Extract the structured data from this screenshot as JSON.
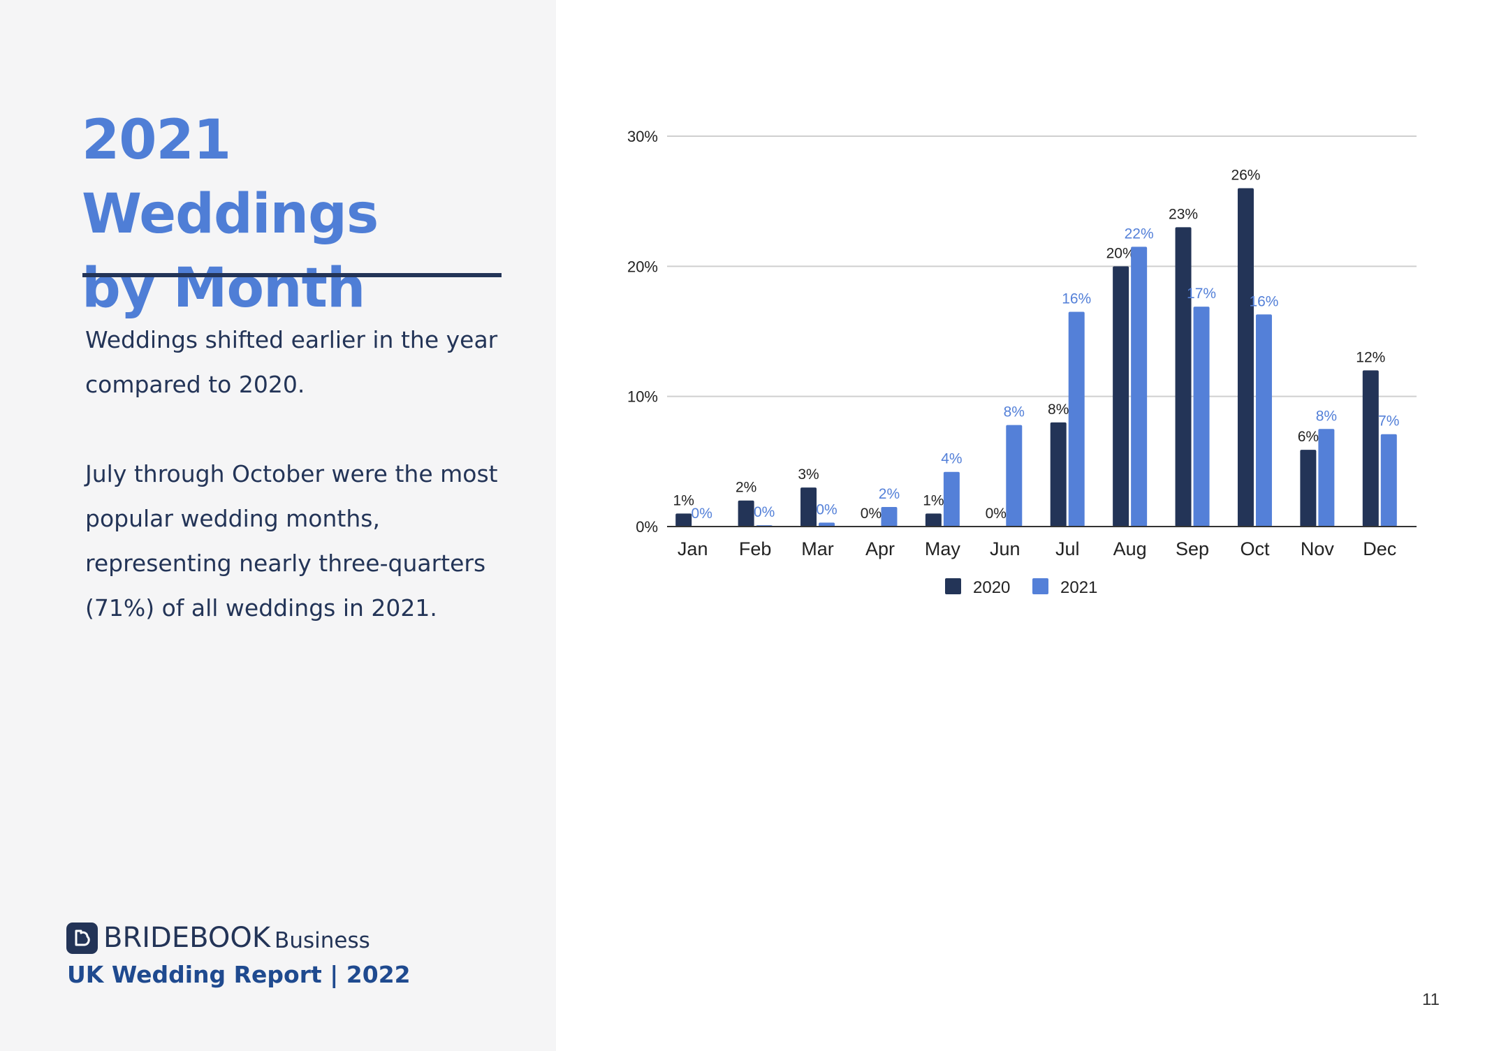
{
  "left": {
    "title_line1": "2021 Weddings",
    "title_line2": "by Month",
    "paragraph1": "Weddings shifted earlier in the year compared to 2020.",
    "paragraph2": "July through October were the most popular wedding months, representing nearly three-quarters (71%) of all weddings in 2021.",
    "logo_brand": "BRIDEBOOK",
    "logo_suffix": "Business",
    "report_title": "UK Wedding Report | 2022"
  },
  "page_number": "11",
  "colors": {
    "series2020": "#233457",
    "series2021": "#5480d8",
    "accent": "#4f7ed6"
  },
  "chart_data": {
    "type": "bar",
    "title": "",
    "xlabel": "",
    "ylabel": "",
    "ylim": [
      0,
      30
    ],
    "yticks": [
      "0%",
      "10%",
      "20%",
      "30%"
    ],
    "ytick_values": [
      0,
      10,
      20,
      30
    ],
    "grid": true,
    "legend_position": "bottom",
    "categories": [
      "Jan",
      "Feb",
      "Mar",
      "Apr",
      "May",
      "Jun",
      "Jul",
      "Aug",
      "Sep",
      "Oct",
      "Nov",
      "Dec"
    ],
    "series": [
      {
        "name": "2020",
        "values": [
          1,
          2,
          3,
          0,
          1,
          0,
          8,
          20,
          23,
          26,
          5.9,
          12
        ],
        "labels": [
          "1%",
          "2%",
          "3%",
          "0%",
          "1%",
          "0%",
          "8%",
          "20%",
          "23%",
          "26%",
          "6%",
          "12%"
        ]
      },
      {
        "name": "2021",
        "values": [
          0,
          0.1,
          0.3,
          1.5,
          4.2,
          7.8,
          16.5,
          21.5,
          16.9,
          16.3,
          7.5,
          7.1
        ],
        "labels": [
          "0%",
          "0%",
          "0%",
          "2%",
          "4%",
          "8%",
          "16%",
          "22%",
          "17%",
          "16%",
          "8%",
          "7%"
        ]
      }
    ]
  }
}
